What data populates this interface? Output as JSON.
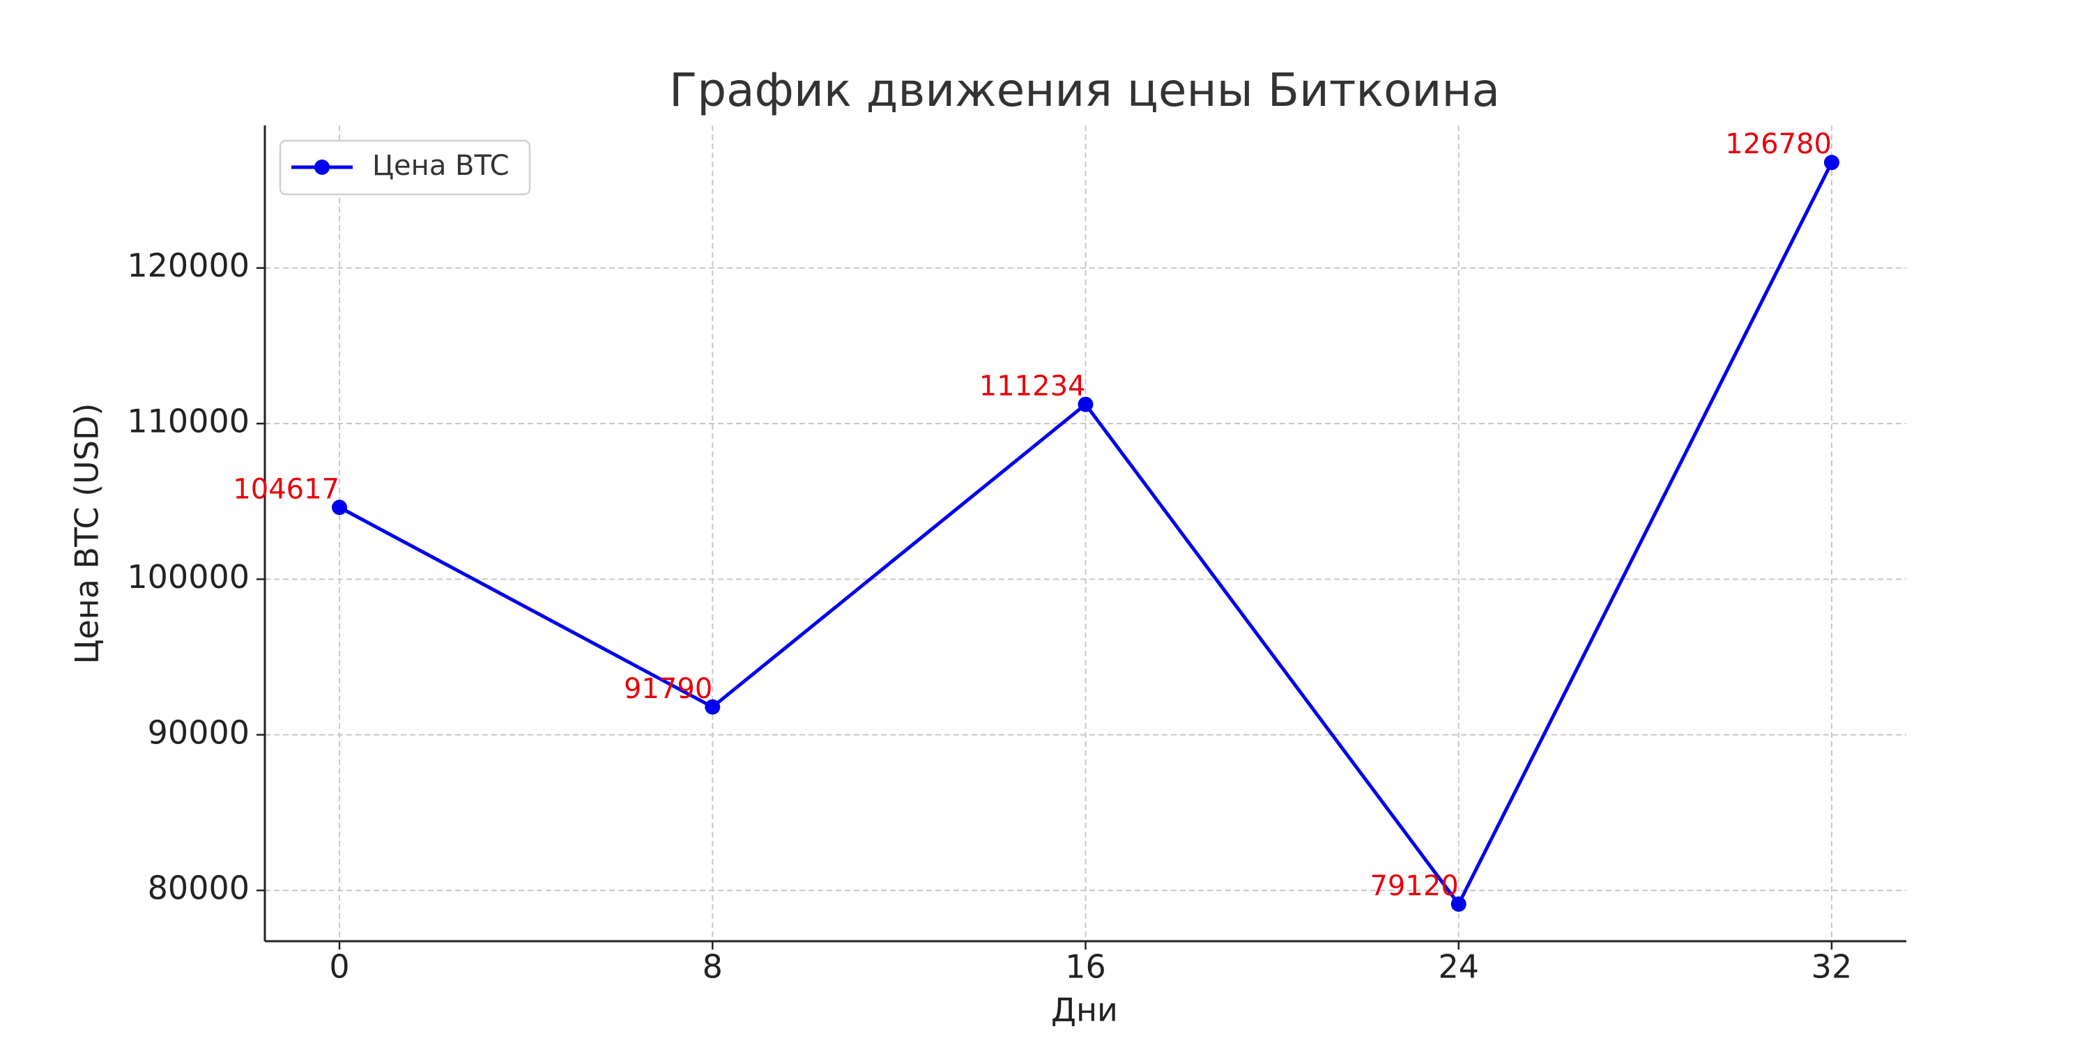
{
  "chart_data": {
    "type": "line",
    "title": "График движения цены Биткоина",
    "xlabel": "Дни",
    "ylabel": "Цена BTC (USD)",
    "x": [
      0,
      8,
      16,
      24,
      32
    ],
    "series": [
      {
        "name": "Цена BTC",
        "color": "#0000ee",
        "values": [
          104617,
          91790,
          111234,
          79120,
          126780
        ]
      }
    ],
    "xlim": [
      -1.6,
      33.6
    ],
    "ylim": [
      76737,
      129163
    ],
    "xticks": [
      0,
      8,
      16,
      24,
      32
    ],
    "yticks": [
      80000,
      90000,
      100000,
      110000,
      120000
    ],
    "grid": true,
    "legend": "upper left"
  }
}
